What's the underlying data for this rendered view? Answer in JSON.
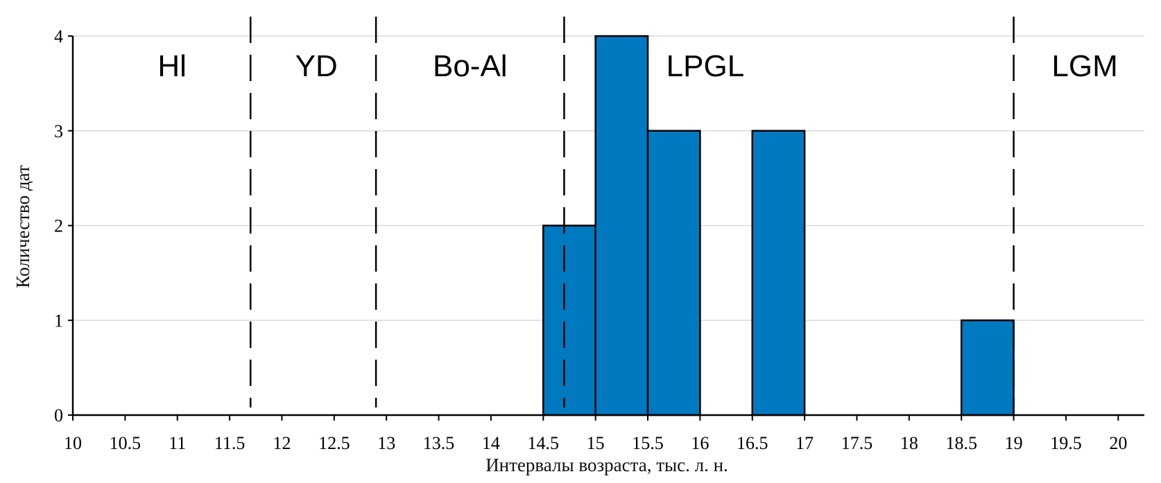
{
  "chart_data": {
    "type": "bar",
    "xlabel": "Интервалы возраста, тыс. л. н.",
    "ylabel": "Количество дат",
    "xlim": [
      10,
      20.25
    ],
    "ylim": [
      0,
      4
    ],
    "grid": true,
    "bar_color": "#0179C1",
    "bar_edge_color": "#000000",
    "x_ticks": [
      "10",
      "10.5",
      "11",
      "11.5",
      "12",
      "12.5",
      "13",
      "13.5",
      "14",
      "14.5",
      "15",
      "15.5",
      "16",
      "16.5",
      "17",
      "17.5",
      "18",
      "18.5",
      "19",
      "19.5",
      "20"
    ],
    "y_ticks": [
      "0",
      "1",
      "2",
      "3",
      "4"
    ],
    "bins": [
      {
        "start": 14.5,
        "end": 15.0,
        "count": 2
      },
      {
        "start": 15.0,
        "end": 15.5,
        "count": 4
      },
      {
        "start": 15.5,
        "end": 16.0,
        "count": 3
      },
      {
        "start": 16.5,
        "end": 17.0,
        "count": 3
      },
      {
        "start": 18.5,
        "end": 19.0,
        "count": 1
      }
    ],
    "boundaries": [
      11.7,
      12.9,
      14.7,
      19.0
    ],
    "periods": [
      {
        "label": "Hl",
        "center": 10.95
      },
      {
        "label": "YD",
        "center": 12.33
      },
      {
        "label": "Bo-Al",
        "center": 13.8
      },
      {
        "label": "LPGL",
        "center": 16.05
      },
      {
        "label": "LGM",
        "center": 19.68
      }
    ]
  }
}
